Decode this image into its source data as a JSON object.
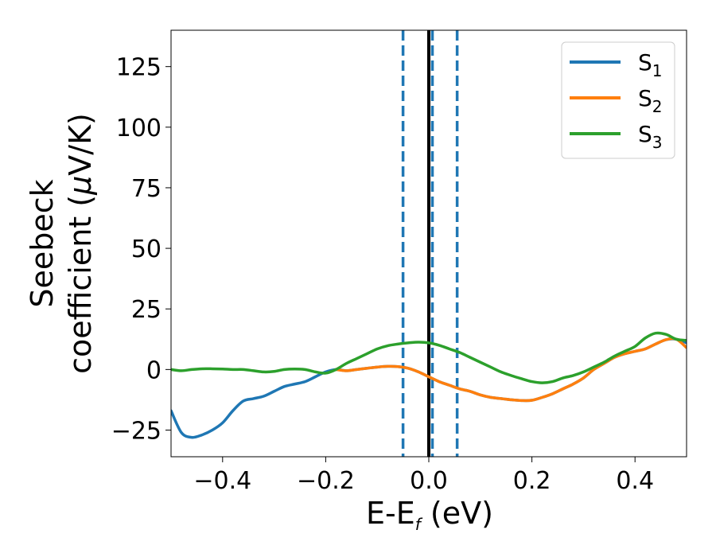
{
  "chart_data": {
    "type": "line",
    "xlabel": {
      "main": "E-E",
      "sub": "f",
      "suffix": " (eV)"
    },
    "ylabel": {
      "line1": "Seebeck",
      "line2_prefix": "coefficient  (",
      "line2_mu": "μ",
      "line2_suffix": "V/K)"
    },
    "xlim": [
      -0.5,
      0.5
    ],
    "ylim": [
      -36,
      140
    ],
    "xticks": [
      -0.4,
      -0.2,
      0.0,
      0.2,
      0.4
    ],
    "xtick_labels": [
      "−0.4",
      "−0.2",
      "0.0",
      "0.2",
      "0.4"
    ],
    "yticks": [
      -25,
      0,
      25,
      50,
      75,
      100,
      125
    ],
    "ytick_labels": [
      "−25",
      "0",
      "25",
      "50",
      "75",
      "100",
      "125"
    ],
    "grid": false,
    "legend_position": "top-right",
    "vertical_lines": [
      {
        "x": 0.0,
        "style": "solid",
        "color": "#000000"
      },
      {
        "x": -0.05,
        "style": "dashed",
        "color": "#1f77b4"
      },
      {
        "x": 0.007,
        "style": "dashed",
        "color": "#1f77b4"
      },
      {
        "x": 0.055,
        "style": "dashed",
        "color": "#1f77b4"
      }
    ],
    "series": [
      {
        "name_main": "S",
        "name_sub": "1",
        "color": "#1f77b4",
        "x": [
          -0.5,
          -0.48,
          -0.46,
          -0.44,
          -0.42,
          -0.4,
          -0.38,
          -0.36,
          -0.34,
          -0.32,
          -0.3,
          -0.28,
          -0.26,
          -0.24,
          -0.22,
          -0.2,
          -0.18,
          -0.16,
          -0.14,
          -0.12,
          -0.1,
          -0.08,
          -0.06,
          -0.04,
          -0.02,
          0.0,
          0.02,
          0.04,
          0.06,
          0.08,
          0.1,
          0.12,
          0.14,
          0.16,
          0.18,
          0.2,
          0.22,
          0.24,
          0.26,
          0.28,
          0.3,
          0.32,
          0.34,
          0.36,
          0.38,
          0.4,
          0.42,
          0.44,
          0.46,
          0.48,
          0.5
        ],
        "y": [
          -17,
          -26,
          -28,
          -27,
          -25,
          -22,
          -17,
          -13,
          -12,
          -11,
          -9,
          -7,
          -6,
          -5,
          -3,
          -1,
          0,
          -0.5,
          0,
          0.5,
          1,
          1.3,
          1.2,
          0.5,
          -1,
          -3,
          -5,
          -6.5,
          -8,
          -9,
          -10.5,
          -11.5,
          -12,
          -12.5,
          -12.8,
          -12.7,
          -11.5,
          -10,
          -8,
          -6,
          -3.5,
          0,
          2.5,
          5,
          6.5,
          7.5,
          8.5,
          10.5,
          12.3,
          12.5,
          11
        ]
      },
      {
        "name_main": "S",
        "name_sub": "2",
        "color": "#ff7f0e",
        "x": [
          -0.18,
          -0.16,
          -0.14,
          -0.12,
          -0.1,
          -0.08,
          -0.06,
          -0.04,
          -0.02,
          0.0,
          0.02,
          0.04,
          0.06,
          0.08,
          0.1,
          0.12,
          0.14,
          0.16,
          0.18,
          0.2,
          0.22,
          0.24,
          0.26,
          0.28,
          0.3,
          0.32,
          0.34,
          0.36,
          0.38,
          0.4,
          0.42,
          0.44,
          0.46,
          0.48,
          0.5
        ],
        "y": [
          0,
          -0.5,
          0,
          0.5,
          1,
          1.3,
          1.2,
          0.5,
          -1,
          -3,
          -5,
          -6.5,
          -8,
          -9,
          -10.5,
          -11.5,
          -12,
          -12.5,
          -12.8,
          -12.7,
          -11.5,
          -10,
          -8,
          -6,
          -3.5,
          0,
          2.5,
          5,
          6.5,
          7.5,
          8.5,
          10.5,
          12.3,
          12.5,
          9
        ]
      },
      {
        "name_main": "S",
        "name_sub": "3",
        "color": "#2ca02c",
        "x": [
          -0.5,
          -0.48,
          -0.46,
          -0.44,
          -0.42,
          -0.4,
          -0.38,
          -0.36,
          -0.34,
          -0.32,
          -0.3,
          -0.28,
          -0.26,
          -0.24,
          -0.22,
          -0.2,
          -0.18,
          -0.16,
          -0.14,
          -0.12,
          -0.1,
          -0.08,
          -0.06,
          -0.04,
          -0.02,
          0.0,
          0.02,
          0.04,
          0.06,
          0.08,
          0.1,
          0.12,
          0.14,
          0.16,
          0.18,
          0.2,
          0.22,
          0.24,
          0.26,
          0.28,
          0.3,
          0.32,
          0.34,
          0.36,
          0.38,
          0.4,
          0.42,
          0.44,
          0.46,
          0.48,
          0.5
        ],
        "y": [
          0,
          -0.5,
          0,
          0.3,
          0.3,
          0.2,
          0,
          0,
          -0.5,
          -1,
          -0.8,
          0,
          0.2,
          0,
          -1,
          -1.5,
          0,
          2.5,
          4.5,
          6.5,
          8.5,
          9.8,
          10.5,
          11,
          11.3,
          11,
          10,
          8.5,
          7,
          5,
          3,
          1,
          -1,
          -2.5,
          -3.8,
          -5,
          -5.5,
          -5,
          -3.5,
          -2.5,
          -1,
          1,
          3,
          5.5,
          7.5,
          9.5,
          13,
          15,
          14.5,
          12.5,
          12
        ]
      }
    ]
  }
}
